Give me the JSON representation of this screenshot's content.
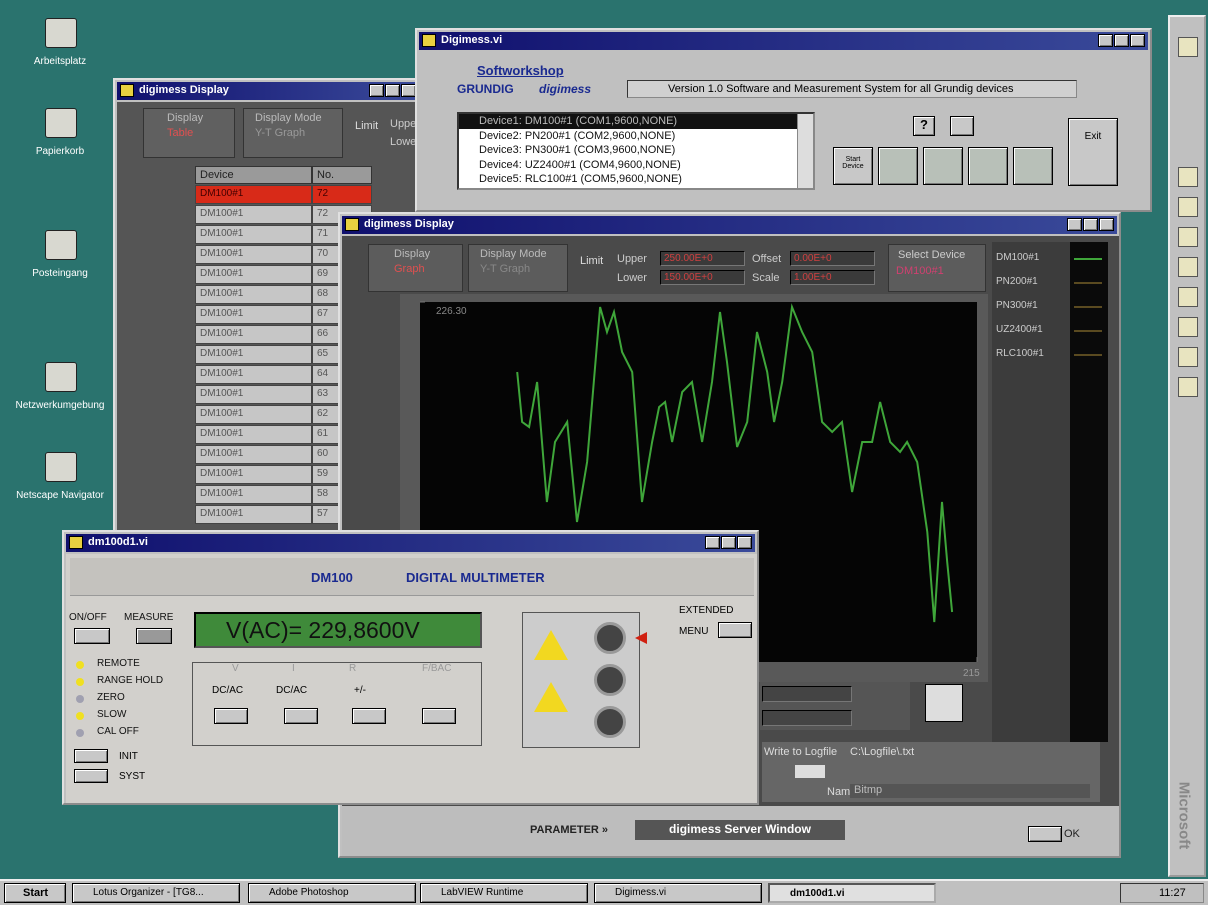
{
  "desktop": {
    "icons": [
      "Arbeitsplatz",
      "Papierkorb",
      "Posteingang",
      "Netzwerkumgebung",
      "Netscape Navigator"
    ]
  },
  "taskbar": {
    "start": "Start",
    "items": [
      "Lotus Organizer - [TG8...",
      "Adobe Photoshop",
      "LabVIEW Runtime",
      "Digimess.vi",
      "dm100d1.vi"
    ],
    "clock": "11:27"
  },
  "office_bar": {
    "label": "Microsoft"
  },
  "table_window": {
    "title": "digimess Display",
    "display_label": "Display",
    "display_value": "Table",
    "mode_label": "Display Mode",
    "mode_value": "Y-T Graph",
    "limit": "Limit",
    "upper": "Upper",
    "lower": "Lower",
    "columns": [
      "Device",
      "No."
    ],
    "rows": [
      [
        "DM100#1",
        72
      ],
      [
        "DM100#1",
        72
      ],
      [
        "DM100#1",
        71
      ],
      [
        "DM100#1",
        70
      ],
      [
        "DM100#1",
        69
      ],
      [
        "DM100#1",
        68
      ],
      [
        "DM100#1",
        67
      ],
      [
        "DM100#1",
        66
      ],
      [
        "DM100#1",
        65
      ],
      [
        "DM100#1",
        64
      ],
      [
        "DM100#1",
        63
      ],
      [
        "DM100#1",
        62
      ],
      [
        "DM100#1",
        61
      ],
      [
        "DM100#1",
        60
      ],
      [
        "DM100#1",
        59
      ],
      [
        "DM100#1",
        58
      ],
      [
        "DM100#1",
        57
      ]
    ]
  },
  "digimess_window": {
    "title": "Digimess.vi",
    "softworkshop": "Softworkshop",
    "brand": "GRUNDIG",
    "product": "digimess",
    "version": "Version 1.0 Software and Measurement System for all Grundig devices",
    "devices": [
      "Device1: DM100#1 (COM1,9600,NONE)",
      "Device2: PN200#1 (COM2,9600,NONE)",
      "Device3: PN300#1 (COM3,9600,NONE)",
      "Device4: UZ2400#1 (COM4,9600,NONE)",
      "Device5: RLC100#1 (COM5,9600,NONE)"
    ],
    "help": "?",
    "start_button": "Start Device",
    "exit": "Exit"
  },
  "graph_window": {
    "title": "digimess Display",
    "display_label": "Display",
    "display_value": "Graph",
    "mode_label": "Display Mode",
    "mode_value": "Y-T Graph",
    "limit": "Limit",
    "upper_label": "Upper",
    "upper": "250.00E+0",
    "lower_label": "Lower",
    "lower": "150.00E+0",
    "offset_label": "Offset",
    "offset": "0.00E+0",
    "scale_label": "Scale",
    "scale": "1.00E+0",
    "select_label": "Select Device",
    "select_value": "DM100#1",
    "legend": [
      "DM100#1",
      "PN200#1",
      "PN300#1",
      "UZ2400#1",
      "RLC100#1"
    ],
    "logfile_label": "Write to Logfile",
    "logfile_path": "C:\\Logfile\\.txt",
    "name_label": "Name",
    "name_value": "Bitmp",
    "parameter": "PARAMETER »",
    "server_window": "digimess Server Window",
    "ok": "OK"
  },
  "chart_data": {
    "type": "line",
    "color": "#3fa63a",
    "xlim": [
      0,
      215
    ],
    "xticks": [
      215
    ],
    "ylim": [
      222.7,
      226.3
    ],
    "yticks": [
      {
        "value": 226.3,
        "label": "226.30"
      }
    ],
    "x": [
      37.5,
      39.4,
      42.1,
      45.2,
      49.0,
      52.1,
      56.8,
      60.6,
      64.5,
      69.5,
      72.2,
      74.9,
      78.0,
      81.9,
      85.7,
      89.6,
      92.3,
      94.6,
      97.3,
      101.2,
      105.0,
      108.9,
      112.7,
      115.8,
      118.5,
      122.4,
      126.3,
      130.1,
      134.0,
      136.7,
      139.8,
      143.6,
      147.5,
      151.4,
      155.2,
      159.1,
      162.9,
      166.8,
      170.7,
      174.5,
      177.6,
      181.5,
      185.3,
      188.0,
      191.9,
      195.8,
      198.5,
      201.5,
      203.5,
      205.4
    ],
    "values": [
      225.6,
      225.1,
      225.05,
      225.5,
      224.3,
      224.9,
      225.1,
      224.1,
      224.7,
      226.25,
      226.0,
      226.2,
      225.8,
      225.6,
      224.3,
      224.9,
      225.25,
      225.3,
      224.9,
      225.4,
      225.5,
      224.9,
      225.5,
      226.2,
      225.7,
      224.85,
      225.1,
      226.0,
      225.6,
      225.1,
      225.5,
      226.25,
      226.0,
      225.8,
      225.1,
      225.0,
      225.1,
      224.4,
      224.9,
      224.9,
      225.3,
      224.9,
      224.8,
      224.9,
      224.7,
      224.0,
      223.1,
      224.3,
      223.7,
      223.2
    ]
  },
  "multimeter_window": {
    "title": "dm100d1.vi",
    "model": "DM100",
    "heading": "DIGITAL MULTIMETER",
    "on_off": "ON/OFF",
    "measure": "MEASURE",
    "display": "V(AC)=  229,8600V",
    "indicators": [
      "REMOTE",
      "RANGE HOLD",
      "ZERO",
      "SLOW",
      "CAL OFF"
    ],
    "init": "INIT",
    "syst": "SYST",
    "groups": [
      "V",
      "I",
      "R",
      "F/BAC"
    ],
    "mode_buttons": [
      "DC/AC",
      "DC/AC",
      "+/-"
    ],
    "extended": "EXTENDED",
    "menu": "MENU"
  }
}
